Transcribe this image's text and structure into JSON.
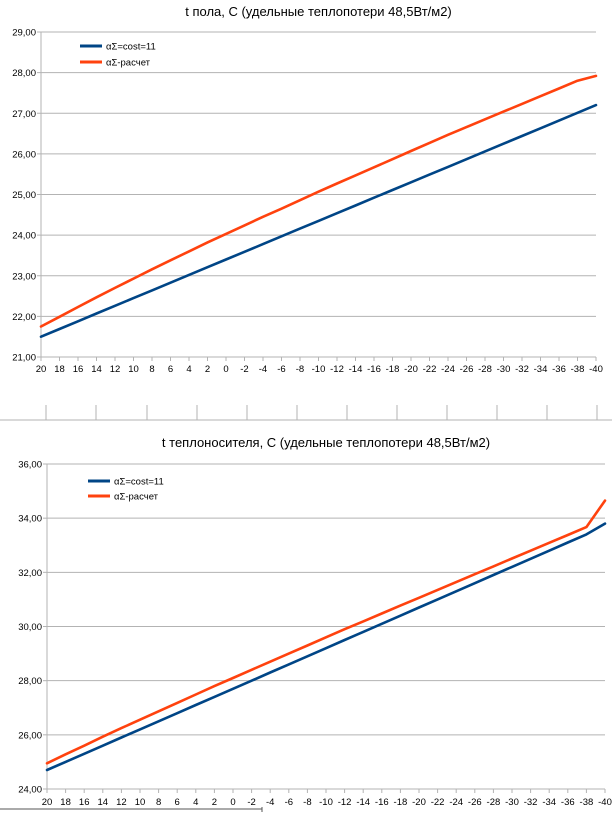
{
  "chart_data": [
    {
      "type": "line",
      "title": "t пола, С  (удельные теплопотери 48,5Вт/м2)",
      "categories": [
        "20",
        "18",
        "16",
        "14",
        "12",
        "10",
        "8",
        "6",
        "4",
        "2",
        "0",
        "-2",
        "-4",
        "-6",
        "-8",
        "-10",
        "-12",
        "-14",
        "-16",
        "-18",
        "-20",
        "-22",
        "-24",
        "-26",
        "-28",
        "-30",
        "-32",
        "-34",
        "-36",
        "-38",
        "-40"
      ],
      "ylim": [
        21,
        29
      ],
      "yticks": [
        "21,00",
        "22,00",
        "23,00",
        "24,00",
        "25,00",
        "26,00",
        "27,00",
        "28,00",
        "29,00"
      ],
      "grid": true,
      "legend_position": "top-left",
      "series": [
        {
          "name": "αΣ=cost=11",
          "color": "#004586",
          "values": [
            21.5,
            21.69,
            21.88,
            22.07,
            22.26,
            22.45,
            22.64,
            22.83,
            23.02,
            23.21,
            23.4,
            23.59,
            23.78,
            23.97,
            24.16,
            24.35,
            24.54,
            24.73,
            24.92,
            25.11,
            25.3,
            25.49,
            25.68,
            25.87,
            26.06,
            26.25,
            26.44,
            26.63,
            26.82,
            27.01,
            27.2
          ]
        },
        {
          "name": "αΣ-расчет",
          "color": "#ff420e",
          "values": [
            21.75,
            21.99,
            22.23,
            22.47,
            22.7,
            22.93,
            23.16,
            23.38,
            23.6,
            23.82,
            24.03,
            24.24,
            24.45,
            24.65,
            24.86,
            25.07,
            25.27,
            25.47,
            25.67,
            25.87,
            26.07,
            26.27,
            26.47,
            26.66,
            26.85,
            27.04,
            27.23,
            27.42,
            27.61,
            27.8,
            27.92
          ]
        }
      ]
    },
    {
      "type": "line",
      "title": "t теплоносителя, С  (удельные теплопотери 48,5Вт/м2)",
      "categories": [
        "20",
        "18",
        "16",
        "14",
        "12",
        "10",
        "8",
        "6",
        "4",
        "2",
        "0",
        "-2",
        "-4",
        "-6",
        "-8",
        "-10",
        "-12",
        "-14",
        "-16",
        "-18",
        "-20",
        "-22",
        "-24",
        "-26",
        "-28",
        "-30",
        "-32",
        "-34",
        "-36",
        "-38",
        "-40"
      ],
      "ylim": [
        24,
        36
      ],
      "yticks": [
        "24,00",
        "26,00",
        "28,00",
        "30,00",
        "32,00",
        "34,00",
        "36,00"
      ],
      "grid": true,
      "legend_position": "top-left",
      "series": [
        {
          "name": "αΣ=cost=11",
          "color": "#004586",
          "values": [
            24.7,
            25.0,
            25.3,
            25.6,
            25.9,
            26.2,
            26.5,
            26.8,
            27.1,
            27.4,
            27.7,
            28.0,
            28.3,
            28.6,
            28.9,
            29.2,
            29.5,
            29.8,
            30.1,
            30.4,
            30.7,
            31.0,
            31.3,
            31.6,
            31.9,
            32.2,
            32.5,
            32.8,
            33.1,
            33.4,
            33.8
          ]
        },
        {
          "name": "αΣ-расчет",
          "color": "#ff420e",
          "values": [
            24.95,
            25.28,
            25.6,
            25.93,
            26.25,
            26.56,
            26.87,
            27.18,
            27.49,
            27.8,
            28.1,
            28.4,
            28.7,
            29.0,
            29.3,
            29.6,
            29.9,
            30.19,
            30.48,
            30.77,
            31.06,
            31.35,
            31.64,
            31.93,
            32.22,
            32.51,
            32.8,
            33.09,
            33.38,
            33.67,
            34.65
          ]
        }
      ]
    }
  ]
}
